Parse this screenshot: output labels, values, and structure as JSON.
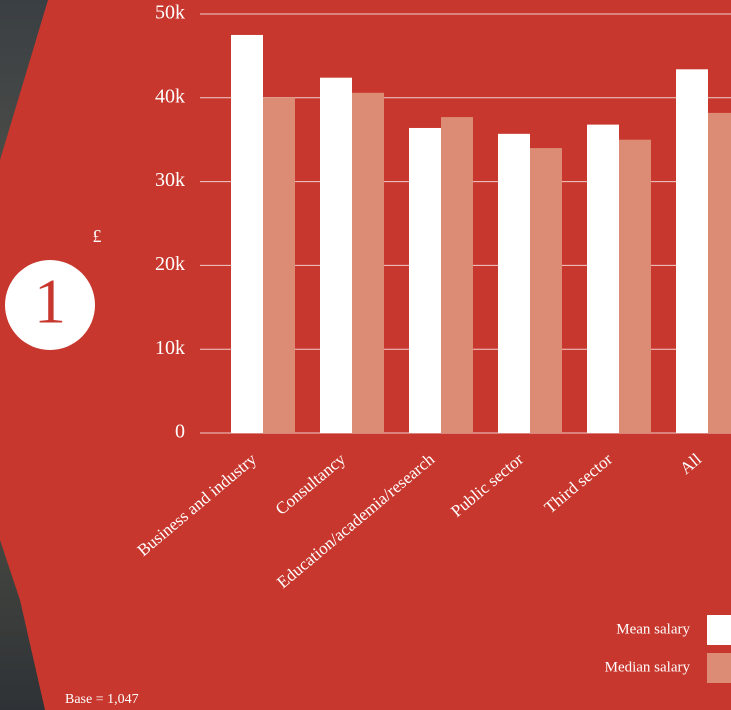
{
  "chart_data": {
    "type": "bar",
    "y_label": "£",
    "badge": "1",
    "note": "Base = 1,047",
    "categories": [
      "Business and industry",
      "Consultancy",
      "Education/academia/research",
      "Public sector",
      "Third sector",
      "All"
    ],
    "series": [
      {
        "name": "Mean salary",
        "color": "#ffffff",
        "values": [
          47500,
          42400,
          36400,
          35700,
          36800,
          43400
        ]
      },
      {
        "name": "Median salary",
        "color": "#dc8c74",
        "values": [
          40000,
          40600,
          37700,
          34000,
          35000,
          38200
        ]
      }
    ],
    "ylim": [
      0,
      50000
    ],
    "yticks": [
      0,
      {
        "value": 10000,
        "label": "10k"
      },
      {
        "value": 20000,
        "label": "20k"
      },
      {
        "value": 30000,
        "label": "30k"
      },
      {
        "value": 40000,
        "label": "40k"
      },
      {
        "value": 50000,
        "label": "50k"
      }
    ],
    "grid": true
  }
}
